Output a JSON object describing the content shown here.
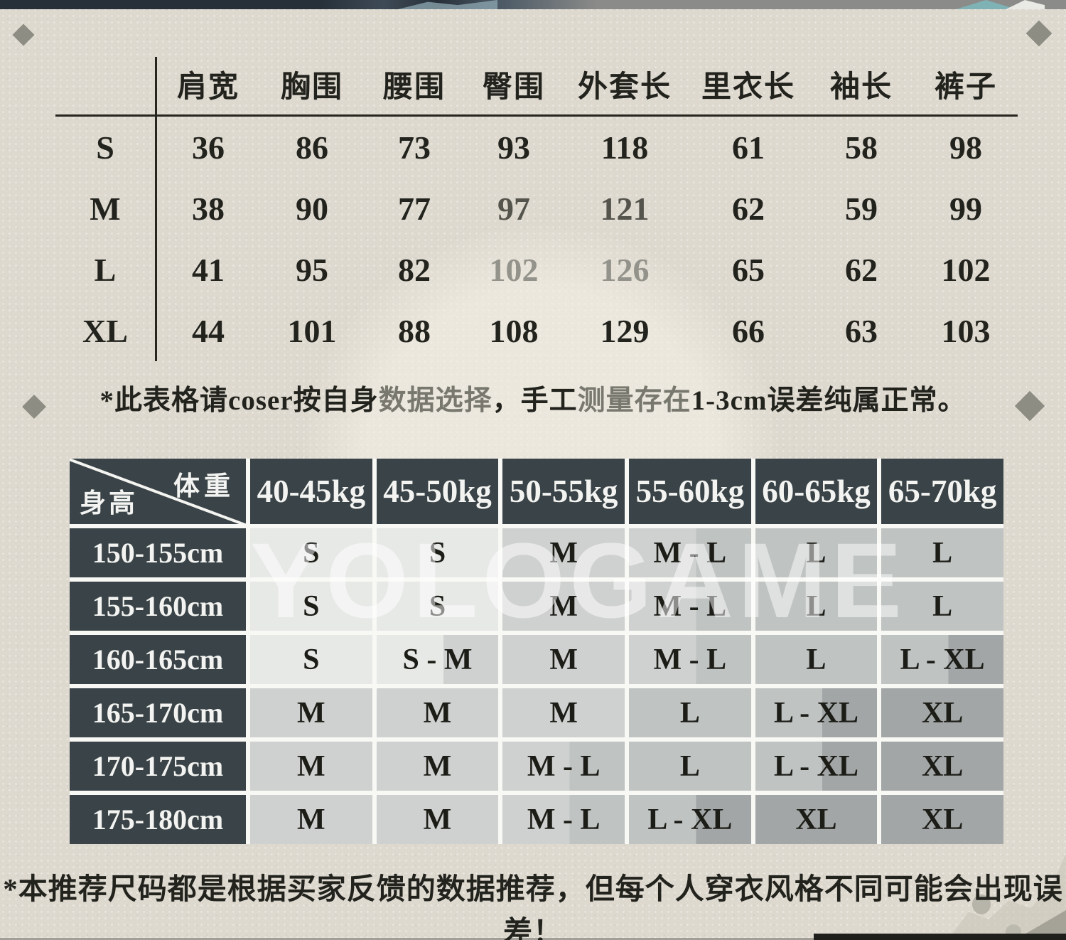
{
  "colors": {
    "paper": "#ded9cf",
    "cell_dark": "#3a4347",
    "gap_white": "#f8f8f5",
    "shade_s": "#e7e9e6",
    "shade_m": "#ced1cf",
    "shade_l": "#bfc3c2",
    "shade_xl": "#a2a6a6",
    "text_dark": "#23231e",
    "fade_medium": "#54544d",
    "fade_light": "#93938b",
    "note_fade": "#78786f"
  },
  "measure_table": {
    "columns": [
      "肩宽",
      "胸围",
      "腰围",
      "臀围",
      "外套长",
      "里衣长",
      "袖长",
      "裤子"
    ],
    "rows": [
      {
        "size": "S",
        "values": [
          "36",
          "86",
          "73",
          "93",
          "118",
          "61",
          "58",
          "98"
        ]
      },
      {
        "size": "M",
        "values": [
          "38",
          "90",
          "77",
          "97",
          "121",
          "62",
          "59",
          "99"
        ]
      },
      {
        "size": "L",
        "values": [
          "41",
          "95",
          "82",
          "102",
          "126",
          "65",
          "62",
          "102"
        ]
      },
      {
        "size": "XL",
        "values": [
          "44",
          "101",
          "88",
          "108",
          "129",
          "66",
          "63",
          "103"
        ]
      }
    ],
    "faded": [
      {
        "row": 1,
        "cols": [
          3,
          4
        ],
        "color_key": "fade_medium"
      },
      {
        "row": 2,
        "cols": [
          3,
          4
        ],
        "color_key": "fade_light"
      }
    ],
    "note_segments": [
      {
        "text": "*此表格请coser按自身",
        "faded": false
      },
      {
        "text": "数据选择",
        "faded": true
      },
      {
        "text": "，手工",
        "faded": false
      },
      {
        "text": "测量存在",
        "faded": true
      },
      {
        "text": "1-3cm误差纯属正常。",
        "faded": false
      }
    ]
  },
  "size_matrix": {
    "corner_weight": "体重",
    "corner_height": "身高",
    "weight_columns": [
      "40-45kg",
      "45-50kg",
      "50-55kg",
      "55-60kg",
      "60-65kg",
      "65-70kg"
    ],
    "rows": [
      {
        "height": "150-155cm",
        "cells": [
          "S",
          "S",
          "M",
          "M - L",
          "L",
          "L"
        ]
      },
      {
        "height": "155-160cm",
        "cells": [
          "S",
          "S",
          "M",
          "M - L",
          "L",
          "L"
        ]
      },
      {
        "height": "160-165cm",
        "cells": [
          "S",
          "S - M",
          "M",
          "M - L",
          "L",
          "L - XL"
        ]
      },
      {
        "height": "165-170cm",
        "cells": [
          "M",
          "M",
          "M",
          "L",
          "L - XL",
          "XL"
        ]
      },
      {
        "height": "170-175cm",
        "cells": [
          "M",
          "M",
          "M - L",
          "L",
          "L - XL",
          "XL"
        ]
      },
      {
        "height": "175-180cm",
        "cells": [
          "M",
          "M",
          "M - L",
          "L - XL",
          "XL",
          "XL"
        ]
      }
    ],
    "note": "*本推荐尺码都是根据买家反馈的数据推荐，但每个人穿衣风格不同可能会出现误差！"
  },
  "watermark": {
    "text": "YOLOGAME"
  }
}
